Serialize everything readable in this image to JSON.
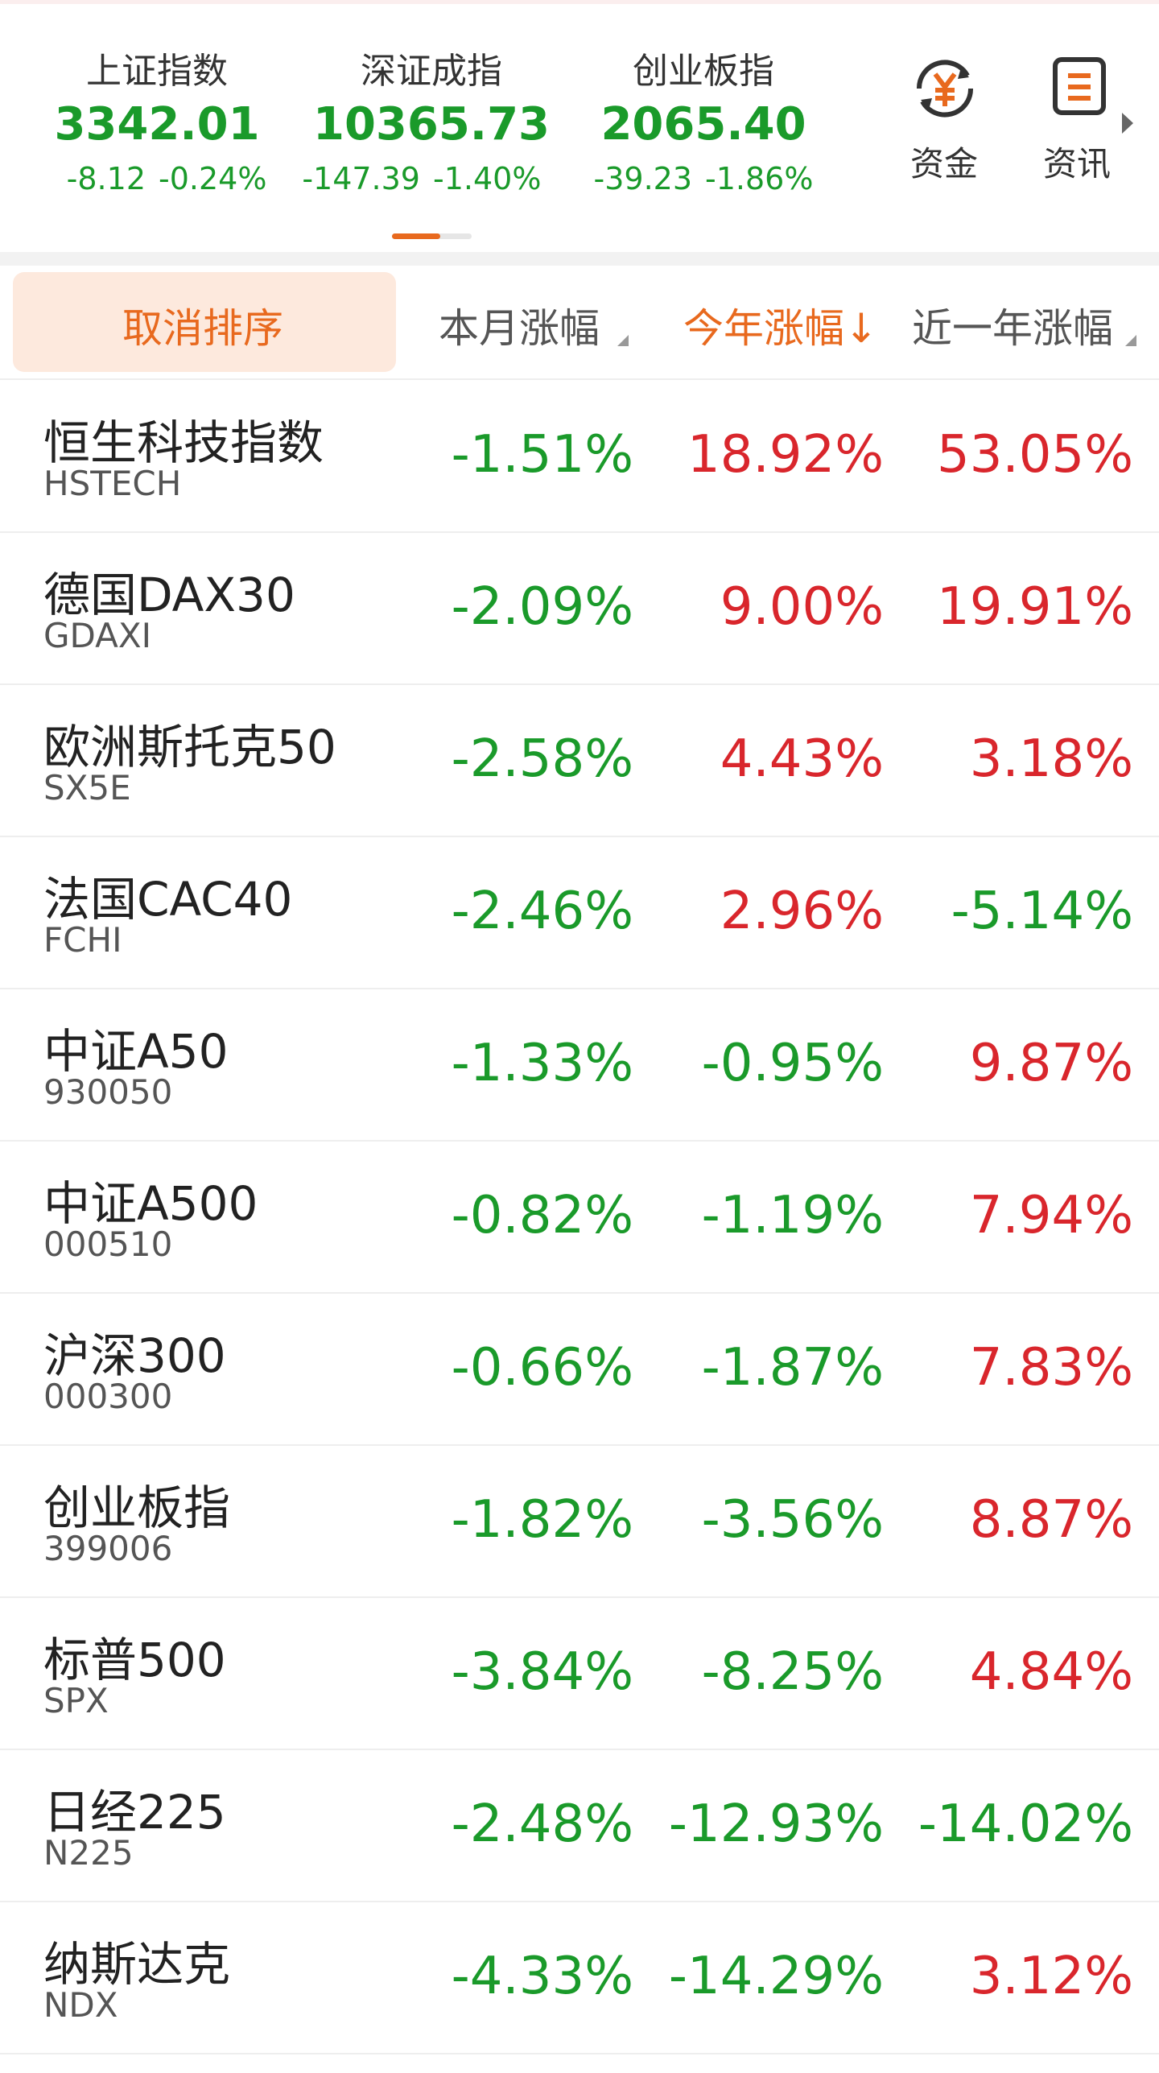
{
  "header": {
    "indices": [
      {
        "name": "上证指数",
        "value": "3342.01",
        "change": "-8.12",
        "percent": "-0.24%"
      },
      {
        "name": "深证成指",
        "value": "10365.73",
        "change": "-147.39",
        "percent": "-1.40%"
      },
      {
        "name": "创业板指",
        "value": "2065.40",
        "change": "-39.23",
        "percent": "-1.86%"
      }
    ],
    "icons": [
      {
        "label": "资金"
      },
      {
        "label": "资讯"
      }
    ]
  },
  "table": {
    "columns": [
      "取消排序",
      "本月涨幅",
      "今年涨幅↓",
      "近一年涨幅"
    ],
    "rows": [
      {
        "name": "恒生科技指数",
        "code": "HSTECH",
        "values": [
          "-1.51%",
          "18.92%",
          "53.05%"
        ]
      },
      {
        "name": "德国DAX30",
        "code": "GDAXI",
        "values": [
          "-2.09%",
          "9.00%",
          "19.91%"
        ]
      },
      {
        "name": "欧洲斯托克50",
        "code": "SX5E",
        "values": [
          "-2.58%",
          "4.43%",
          "3.18%"
        ]
      },
      {
        "name": "法国CAC40",
        "code": "FCHI",
        "values": [
          "-2.46%",
          "2.96%",
          "-5.14%"
        ]
      },
      {
        "name": "中证A50",
        "code": "930050",
        "values": [
          "-1.33%",
          "-0.95%",
          "9.87%"
        ]
      },
      {
        "name": "中证A500",
        "code": "000510",
        "values": [
          "-0.82%",
          "-1.19%",
          "7.94%"
        ]
      },
      {
        "name": "沪深300",
        "code": "000300",
        "values": [
          "-0.66%",
          "-1.87%",
          "7.83%"
        ]
      },
      {
        "name": "创业板指",
        "code": "399006",
        "values": [
          "-1.82%",
          "-3.56%",
          "8.87%"
        ]
      },
      {
        "name": "标普500",
        "code": "SPX",
        "values": [
          "-3.84%",
          "-8.25%",
          "4.84%"
        ]
      },
      {
        "name": "日经225",
        "code": "N225",
        "values": [
          "-2.48%",
          "-12.93%",
          "-14.02%"
        ]
      },
      {
        "name": "纳斯达克",
        "code": "NDX",
        "values": [
          "-4.33%",
          "-14.29%",
          "3.12%"
        ]
      }
    ]
  }
}
